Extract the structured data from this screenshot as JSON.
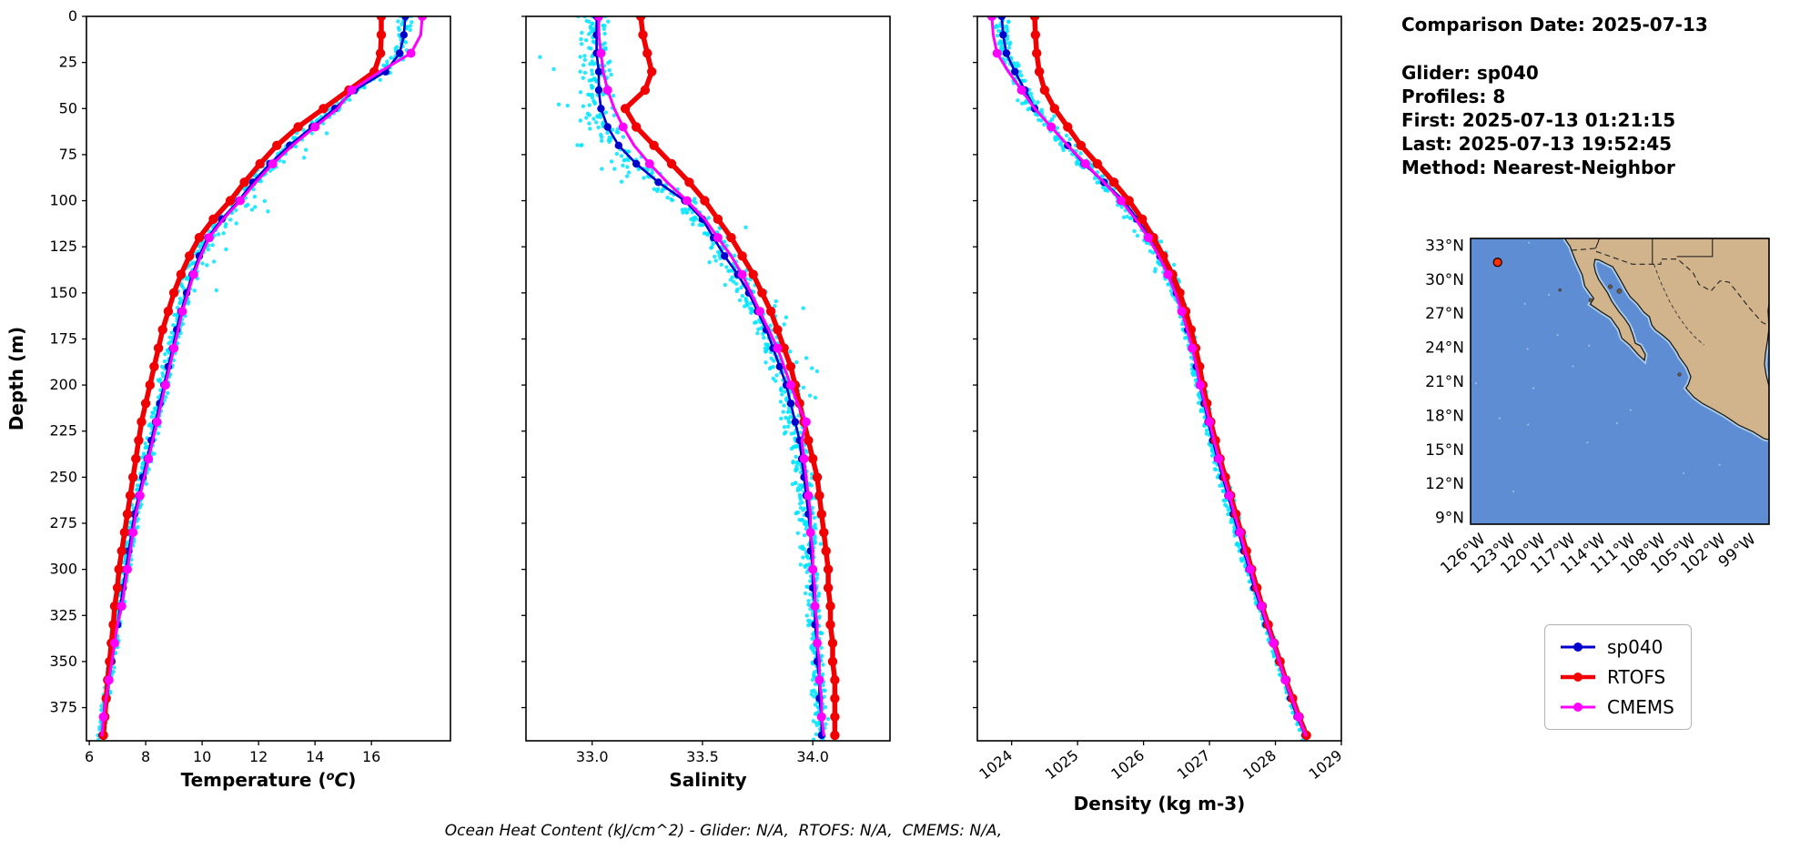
{
  "meta": {
    "comparison_date": "Comparison Date: 2025-07-13",
    "glider": "Glider: sp040",
    "profiles": "Profiles: 8",
    "first": "First: 2025-07-13 01:21:15",
    "last": "Last: 2025-07-13 19:52:45",
    "method": "Method: Nearest-Neighbor"
  },
  "caption": "Ocean Heat Content (kJ/cm^2) - Glider: N/A,  RTOFS: N/A,  CMEMS: N/A,",
  "legend": {
    "items": [
      {
        "label": "sp040",
        "color": "#0000cd"
      },
      {
        "label": "RTOFS",
        "color": "#f00000"
      },
      {
        "label": "CMEMS",
        "color": "#ff00ff"
      }
    ]
  },
  "chart_data": {
    "type": "line",
    "description": "Glider vs model ocean profiles: Temperature, Salinity, Density versus Depth",
    "depth_axis": {
      "label": "Depth (m)",
      "ticks": [
        0,
        25,
        50,
        75,
        100,
        125,
        150,
        175,
        200,
        225,
        250,
        275,
        300,
        325,
        350,
        375
      ],
      "range": [
        0,
        393
      ]
    },
    "depths_m": [
      0,
      10,
      20,
      30,
      40,
      50,
      60,
      70,
      80,
      90,
      100,
      110,
      120,
      130,
      140,
      150,
      160,
      170,
      180,
      190,
      200,
      210,
      220,
      230,
      240,
      250,
      260,
      270,
      280,
      290,
      300,
      310,
      320,
      330,
      340,
      350,
      360,
      370,
      380,
      390
    ],
    "series_styles": {
      "sp040": {
        "color": "#0000cd",
        "lw": 2.6,
        "r": 4.2,
        "marker_step": 1
      },
      "RTOFS": {
        "color": "#f00000",
        "lw": 5.5,
        "r": 5.2,
        "marker_step": 1
      },
      "CMEMS": {
        "color": "#ff00ff",
        "lw": 3.0,
        "r": 5.0,
        "marker_step": 2
      },
      "glider_raw": {
        "color": "#00e5ff",
        "r": 2.2
      }
    },
    "panels": [
      {
        "id": "temperature",
        "xlabel_parts": [
          "Temperature (",
          "o",
          "C",
          ")"
        ],
        "xlim": [
          5.9,
          18.8
        ],
        "xticks": [
          6,
          8,
          10,
          12,
          14,
          16
        ],
        "xtick_labels": [
          "6",
          "8",
          "10",
          "12",
          "14",
          "16"
        ],
        "scatter_jitter": 0.16,
        "scatter_bias": 0.24,
        "series": {
          "sp040": [
            17.2,
            17.15,
            17.0,
            16.5,
            15.4,
            14.7,
            13.9,
            13.1,
            12.4,
            11.8,
            11.3,
            10.7,
            10.2,
            9.9,
            9.65,
            9.45,
            9.25,
            9.1,
            8.95,
            8.8,
            8.65,
            8.5,
            8.35,
            8.2,
            8.05,
            7.9,
            7.75,
            7.6,
            7.5,
            7.4,
            7.3,
            7.2,
            7.1,
            7.0,
            6.9,
            6.8,
            6.7,
            6.6,
            6.5,
            6.45
          ],
          "RTOFS": [
            16.35,
            16.35,
            16.32,
            16.1,
            15.2,
            14.3,
            13.4,
            12.65,
            12.05,
            11.5,
            11.0,
            10.4,
            9.9,
            9.55,
            9.25,
            9.0,
            8.8,
            8.6,
            8.45,
            8.3,
            8.15,
            8.0,
            7.85,
            7.75,
            7.65,
            7.55,
            7.45,
            7.35,
            7.25,
            7.15,
            7.05,
            7.0,
            6.9,
            6.85,
            6.78,
            6.72,
            6.65,
            6.6,
            6.55,
            6.5
          ],
          "CMEMS": [
            17.8,
            17.75,
            17.4,
            16.3,
            15.3,
            14.8,
            14.0,
            13.2,
            12.5,
            11.9,
            11.35,
            10.75,
            10.25,
            9.95,
            9.7,
            9.5,
            9.3,
            9.15,
            9.0,
            8.85,
            8.7,
            8.55,
            8.4,
            8.25,
            8.1,
            7.95,
            7.8,
            7.65,
            7.55,
            7.45,
            7.35,
            7.25,
            7.15,
            7.0,
            6.9,
            6.8,
            6.7,
            6.6,
            6.5,
            6.45
          ]
        }
      },
      {
        "id": "salinity",
        "xlabel": "Salinity",
        "xlim": [
          32.7,
          34.35
        ],
        "xticks": [
          33.0,
          33.5,
          34.0
        ],
        "xtick_labels": [
          "33.0",
          "33.5",
          "34.0"
        ],
        "scatter_jitter": 0.045,
        "scatter_bias": 0.07,
        "series": {
          "sp040": [
            33.02,
            33.02,
            33.02,
            33.03,
            33.03,
            33.04,
            33.07,
            33.12,
            33.2,
            33.3,
            33.42,
            33.5,
            33.55,
            33.6,
            33.66,
            33.71,
            33.75,
            33.79,
            33.82,
            33.85,
            33.88,
            33.9,
            33.92,
            33.94,
            33.95,
            33.96,
            33.97,
            33.98,
            33.99,
            33.99,
            34.0,
            34.0,
            34.01,
            34.01,
            34.02,
            34.02,
            34.03,
            34.03,
            34.04,
            34.04
          ],
          "RTOFS": [
            33.22,
            33.23,
            33.25,
            33.27,
            33.24,
            33.15,
            33.2,
            33.28,
            33.36,
            33.44,
            33.51,
            33.57,
            33.63,
            33.68,
            33.73,
            33.77,
            33.81,
            33.84,
            33.87,
            33.9,
            33.92,
            33.94,
            33.96,
            33.98,
            34.0,
            34.02,
            34.03,
            34.04,
            34.05,
            34.06,
            34.07,
            34.07,
            34.08,
            34.08,
            34.09,
            34.09,
            34.1,
            34.1,
            34.1,
            34.1
          ],
          "CMEMS": [
            33.03,
            33.03,
            33.04,
            33.05,
            33.07,
            33.1,
            33.14,
            33.19,
            33.26,
            33.34,
            33.43,
            33.51,
            33.57,
            33.63,
            33.68,
            33.72,
            33.76,
            33.8,
            33.84,
            33.87,
            33.9,
            33.93,
            33.97,
            33.95,
            33.96,
            33.97,
            33.98,
            33.99,
            33.99,
            34.0,
            34.0,
            34.01,
            34.01,
            34.02,
            34.02,
            34.03,
            34.03,
            34.04,
            34.04,
            34.05
          ]
        }
      },
      {
        "id": "density",
        "xlabel": "Density (kg m-3)",
        "xlim": [
          1023.48,
          1029.0
        ],
        "xticks": [
          1024,
          1025,
          1026,
          1027,
          1028,
          1029
        ],
        "xtick_labels": [
          "1024",
          "1025",
          "1026",
          "1027",
          "1028",
          "1029"
        ],
        "rotate_xticks": -38,
        "scatter_jitter": 0.055,
        "scatter_bias": 0.08,
        "series": {
          "sp040": [
            1023.85,
            1023.87,
            1023.92,
            1024.05,
            1024.2,
            1024.35,
            1024.6,
            1024.85,
            1025.1,
            1025.4,
            1025.7,
            1025.9,
            1026.1,
            1026.25,
            1026.4,
            1026.5,
            1026.6,
            1026.67,
            1026.75,
            1026.8,
            1026.85,
            1026.92,
            1026.98,
            1027.05,
            1027.12,
            1027.2,
            1027.28,
            1027.36,
            1027.44,
            1027.52,
            1027.6,
            1027.68,
            1027.77,
            1027.86,
            1027.96,
            1028.05,
            1028.14,
            1028.23,
            1028.33,
            1028.45
          ],
          "RTOFS": [
            1024.35,
            1024.36,
            1024.38,
            1024.42,
            1024.5,
            1024.65,
            1024.85,
            1025.05,
            1025.3,
            1025.55,
            1025.78,
            1025.98,
            1026.15,
            1026.3,
            1026.44,
            1026.55,
            1026.64,
            1026.72,
            1026.79,
            1026.85,
            1026.9,
            1026.96,
            1027.02,
            1027.09,
            1027.16,
            1027.24,
            1027.32,
            1027.4,
            1027.48,
            1027.56,
            1027.64,
            1027.72,
            1027.8,
            1027.89,
            1027.98,
            1028.07,
            1028.16,
            1028.26,
            1028.36,
            1028.47
          ],
          "CMEMS": [
            1023.7,
            1023.72,
            1023.78,
            1023.95,
            1024.15,
            1024.35,
            1024.6,
            1024.85,
            1025.12,
            1025.4,
            1025.66,
            1025.88,
            1026.07,
            1026.23,
            1026.37,
            1026.48,
            1026.58,
            1026.66,
            1026.74,
            1026.8,
            1026.86,
            1026.93,
            1027.0,
            1027.07,
            1027.14,
            1027.22,
            1027.3,
            1027.38,
            1027.46,
            1027.54,
            1027.62,
            1027.7,
            1027.79,
            1027.88,
            1027.97,
            1028.06,
            1028.15,
            1028.25,
            1028.35,
            1028.46
          ]
        }
      }
    ]
  },
  "map": {
    "extent": {
      "lon": [
        -127.2,
        -97.4
      ],
      "lat": [
        8.4,
        33.6
      ]
    },
    "lon_ticks": [
      -126,
      -123,
      -120,
      -117,
      -114,
      -111,
      -108,
      -105,
      -102,
      -99
    ],
    "lon_tick_labels": [
      "126°W",
      "123°W",
      "120°W",
      "117°W",
      "114°W",
      "111°W",
      "108°W",
      "105°W",
      "102°W",
      "99°W"
    ],
    "lat_ticks": [
      9,
      12,
      15,
      18,
      21,
      24,
      27,
      30,
      33
    ],
    "lat_tick_labels": [
      "9°N",
      "12°N",
      "15°N",
      "18°N",
      "21°N",
      "24°N",
      "27°N",
      "30°N",
      "33°N"
    ],
    "marker": {
      "lon": -124.5,
      "lat": 31.5,
      "color": "#ff3000"
    },
    "colors": {
      "ocean": "#5f8dd3",
      "land": "#d2b48c",
      "shallow": "#a8cbe8",
      "line": "#111111"
    },
    "coast": [
      [
        -117.8,
        33.6
      ],
      [
        -117.25,
        32.88
      ],
      [
        -117.12,
        32.55
      ],
      [
        -116.88,
        32.0
      ],
      [
        -116.6,
        31.4
      ],
      [
        -116.05,
        30.4
      ],
      [
        -115.8,
        29.4
      ],
      [
        -114.9,
        28.3
      ],
      [
        -115.25,
        27.8
      ],
      [
        -114.1,
        27.1
      ],
      [
        -113.2,
        26.6
      ],
      [
        -112.4,
        25.6
      ],
      [
        -112.1,
        24.8
      ],
      [
        -111.3,
        24.2
      ],
      [
        -110.4,
        23.3
      ],
      [
        -109.85,
        22.85
      ],
      [
        -109.75,
        23.35
      ],
      [
        -110.25,
        24.15
      ],
      [
        -110.75,
        24.35
      ],
      [
        -111.0,
        25.1
      ],
      [
        -111.35,
        25.9
      ],
      [
        -111.85,
        26.55
      ],
      [
        -112.35,
        27.1
      ],
      [
        -113.1,
        28.05
      ],
      [
        -113.55,
        28.85
      ],
      [
        -114.4,
        29.95
      ],
      [
        -114.72,
        30.6
      ],
      [
        -114.88,
        31.25
      ],
      [
        -114.78,
        31.75
      ],
      [
        -114.35,
        31.7
      ],
      [
        -113.6,
        31.35
      ],
      [
        -113.0,
        31.1
      ],
      [
        -112.65,
        30.6
      ],
      [
        -112.15,
        29.8
      ],
      [
        -111.65,
        29.0
      ],
      [
        -111.25,
        28.45
      ],
      [
        -110.55,
        27.85
      ],
      [
        -109.9,
        27.1
      ],
      [
        -109.35,
        26.7
      ],
      [
        -109.1,
        25.95
      ],
      [
        -108.75,
        25.55
      ],
      [
        -108.0,
        25.05
      ],
      [
        -107.35,
        24.55
      ],
      [
        -106.6,
        23.6
      ],
      [
        -106.35,
        23.15
      ],
      [
        -105.6,
        22.25
      ],
      [
        -105.2,
        21.4
      ],
      [
        -105.45,
        20.75
      ],
      [
        -105.7,
        20.4
      ],
      [
        -104.9,
        19.6
      ],
      [
        -104.05,
        19.05
      ],
      [
        -103.0,
        18.55
      ],
      [
        -101.8,
        17.95
      ],
      [
        -100.45,
        17.15
      ],
      [
        -99.0,
        16.55
      ],
      [
        -97.9,
        15.95
      ],
      [
        -97.4,
        15.85
      ],
      [
        -97.4,
        20.55
      ],
      [
        -97.7,
        21.6
      ],
      [
        -97.85,
        22.5
      ],
      [
        -97.75,
        23.5
      ],
      [
        -97.55,
        24.6
      ],
      [
        -97.42,
        25.6
      ],
      [
        -97.45,
        26.6
      ],
      [
        -97.5,
        27.2
      ],
      [
        -97.4,
        27.9
      ],
      [
        -97.4,
        33.6
      ]
    ],
    "border_dashed": [
      [
        -117.12,
        32.55
      ],
      [
        -114.82,
        32.72
      ],
      [
        -114.82,
        32.5
      ],
      [
        -111.05,
        31.33
      ],
      [
        -108.2,
        31.33
      ],
      [
        -108.2,
        31.78
      ],
      [
        -106.53,
        31.78
      ],
      [
        -105.0,
        30.6
      ],
      [
        -104.4,
        29.55
      ],
      [
        -103.2,
        28.97
      ],
      [
        -102.3,
        29.85
      ],
      [
        -101.4,
        29.75
      ],
      [
        -100.1,
        28.3
      ],
      [
        -99.4,
        27.5
      ],
      [
        -98.1,
        26.2
      ],
      [
        -97.4,
        25.9
      ]
    ],
    "interior_dashed": [
      [
        -108.9,
        31.33
      ],
      [
        -108.2,
        29.7
      ],
      [
        -107.3,
        28.0
      ],
      [
        -106.5,
        26.8
      ],
      [
        -105.7,
        25.8
      ],
      [
        -104.8,
        24.9
      ],
      [
        -103.9,
        24.2
      ]
    ],
    "state_lines": [
      [
        [
          -114.72,
          32.72
        ],
        [
          -114.6,
          33.0
        ],
        [
          -114.45,
          33.3
        ],
        [
          -114.35,
          33.6
        ]
      ],
      [
        [
          -109.05,
          31.33
        ],
        [
          -109.05,
          33.6
        ]
      ],
      [
        [
          -106.6,
          32.0
        ],
        [
          -103.05,
          32.0
        ],
        [
          -103.05,
          33.6
        ]
      ]
    ],
    "islands": [
      [
        -118.28,
        29.05,
        1.5
      ],
      [
        -115.2,
        28.15,
        2.0
      ],
      [
        -113.25,
        29.35,
        2.2
      ],
      [
        -112.35,
        28.95,
        2.5
      ],
      [
        -106.35,
        21.6,
        1.8
      ]
    ]
  }
}
